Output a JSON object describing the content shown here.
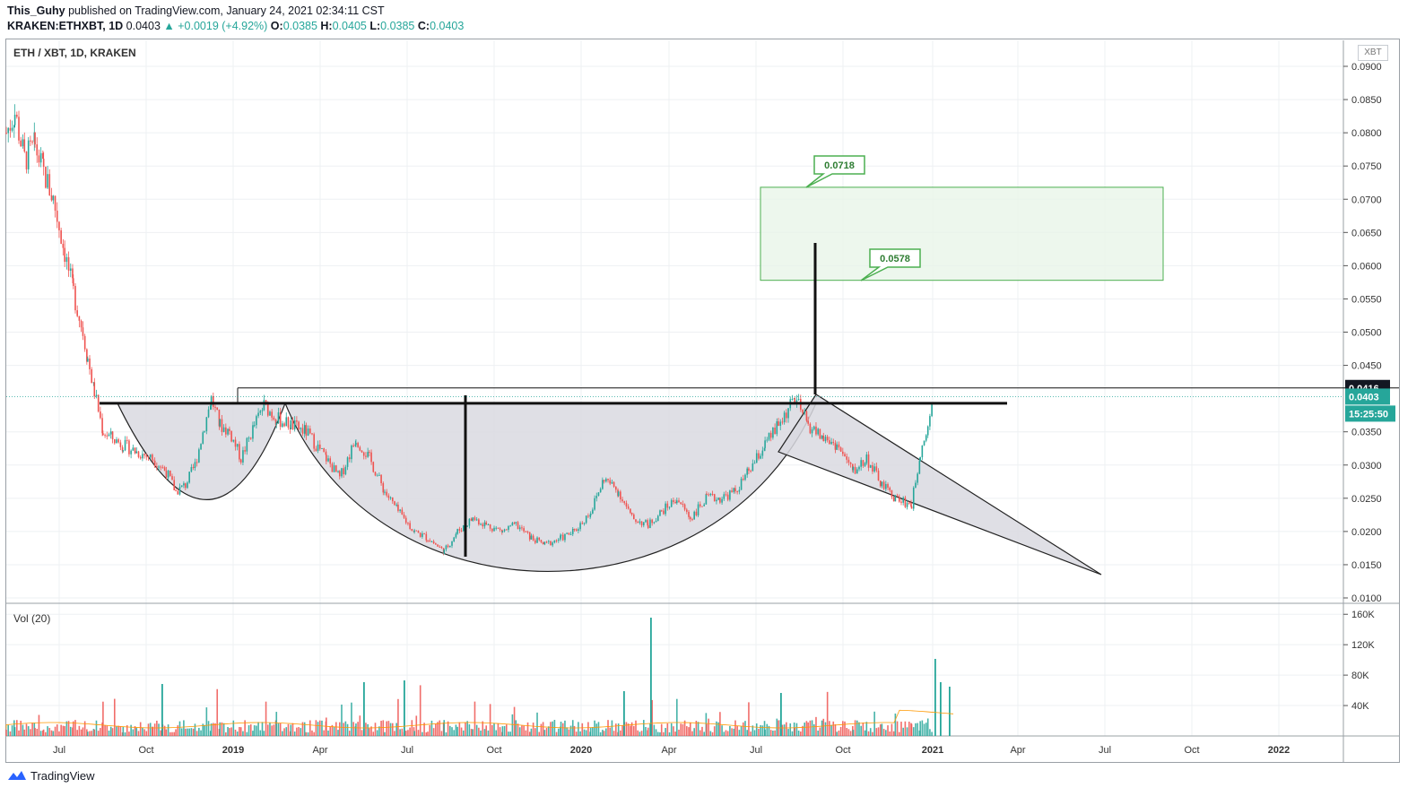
{
  "header": {
    "author": "This_Guhy",
    "published": "published on TradingView.com, January 24, 2021 02:34:11 CST",
    "symbol": "KRAKEN:ETHXBT, 1D",
    "last": "0.0403",
    "change": "▲ +0.0019 (+4.92%)",
    "o_label": "O:",
    "o": "0.0385",
    "h_label": "H:",
    "h": "0.0405",
    "l_label": "L:",
    "l": "0.0385",
    "c_label": "C:",
    "c": "0.0403"
  },
  "pane": {
    "title": "ETH / XBT, 1D, KRAKEN",
    "currency": "XBT",
    "volume_title": "Vol (20)"
  },
  "footer": {
    "brand": "TradingView"
  },
  "colors": {
    "up": "#26a69a",
    "down": "#ef5350",
    "target_fill": "#e8f5e9",
    "target_border": "#4caf50",
    "pattern_fill": "#d9d9e0"
  },
  "chart_data": {
    "type": "candlestick",
    "y_axis": {
      "scale": "linear",
      "range": [
        0.01,
        0.09
      ],
      "ticks": [
        "0.0900",
        "0.0850",
        "0.0800",
        "0.0750",
        "0.0700",
        "0.0650",
        "0.0600",
        "0.0550",
        "0.0500",
        "0.0450",
        "0.0350",
        "0.0300",
        "0.0250",
        "0.0200",
        "0.0150",
        "0.0100"
      ]
    },
    "x_axis": {
      "ticks": [
        "Jul",
        "Oct",
        "2019",
        "Apr",
        "Jul",
        "Oct",
        "2020",
        "Apr",
        "Jul",
        "Oct",
        "2021",
        "Apr",
        "Jul",
        "Oct",
        "2022"
      ]
    },
    "price_labels": [
      {
        "value": "0.0416",
        "style": "black"
      },
      {
        "value": "0.0403",
        "style": "green"
      },
      {
        "value": "15:25:50",
        "style": "green"
      }
    ],
    "annotations": {
      "target_low": "0.0578",
      "target_high": "0.0718",
      "neckline": 0.0393,
      "resistance": 0.0416
    },
    "price_series": [
      [
        "2018-06-01",
        0.08
      ],
      [
        "2018-06-10",
        0.083
      ],
      [
        "2018-06-20",
        0.076
      ],
      [
        "2018-07-01",
        0.078
      ],
      [
        "2018-07-10",
        0.074
      ],
      [
        "2018-07-20",
        0.07
      ],
      [
        "2018-08-01",
        0.062
      ],
      [
        "2018-08-10",
        0.056
      ],
      [
        "2018-08-20",
        0.05
      ],
      [
        "2018-08-25",
        0.046
      ],
      [
        "2018-09-01",
        0.041
      ],
      [
        "2018-09-10",
        0.035
      ],
      [
        "2018-09-20",
        0.034
      ],
      [
        "2018-10-01",
        0.033
      ],
      [
        "2018-10-15",
        0.032
      ],
      [
        "2018-11-01",
        0.031
      ],
      [
        "2018-11-15",
        0.029
      ],
      [
        "2018-11-25",
        0.026
      ],
      [
        "2018-12-05",
        0.027
      ],
      [
        "2018-12-15",
        0.03
      ],
      [
        "2018-12-25",
        0.036
      ],
      [
        "2019-01-01",
        0.04
      ],
      [
        "2019-01-10",
        0.036
      ],
      [
        "2019-01-20",
        0.035
      ],
      [
        "2019-02-01",
        0.031
      ],
      [
        "2019-02-15",
        0.036
      ],
      [
        "2019-02-25",
        0.039
      ],
      [
        "2019-03-10",
        0.037
      ],
      [
        "2019-03-25",
        0.036
      ],
      [
        "2019-04-10",
        0.035
      ],
      [
        "2019-05-01",
        0.031
      ],
      [
        "2019-05-15",
        0.028
      ],
      [
        "2019-06-01",
        0.034
      ],
      [
        "2019-06-15",
        0.031
      ],
      [
        "2019-07-01",
        0.026
      ],
      [
        "2019-07-15",
        0.023
      ],
      [
        "2019-08-01",
        0.02
      ],
      [
        "2019-08-15",
        0.019
      ],
      [
        "2019-09-01",
        0.017
      ],
      [
        "2019-09-15",
        0.02
      ],
      [
        "2019-10-01",
        0.022
      ],
      [
        "2019-10-15",
        0.021
      ],
      [
        "2019-11-01",
        0.02
      ],
      [
        "2019-11-15",
        0.021
      ],
      [
        "2019-12-01",
        0.019
      ],
      [
        "2019-12-15",
        0.018
      ],
      [
        "2020-01-01",
        0.019
      ],
      [
        "2020-01-15",
        0.02
      ],
      [
        "2020-02-01",
        0.023
      ],
      [
        "2020-02-15",
        0.028
      ],
      [
        "2020-03-01",
        0.026
      ],
      [
        "2020-03-15",
        0.022
      ],
      [
        "2020-04-01",
        0.021
      ],
      [
        "2020-04-15",
        0.023
      ],
      [
        "2020-05-01",
        0.025
      ],
      [
        "2020-05-15",
        0.022
      ],
      [
        "2020-06-01",
        0.025
      ],
      [
        "2020-06-15",
        0.025
      ],
      [
        "2020-07-01",
        0.026
      ],
      [
        "2020-07-15",
        0.029
      ],
      [
        "2020-08-01",
        0.033
      ],
      [
        "2020-08-15",
        0.036
      ],
      [
        "2020-09-01",
        0.04
      ],
      [
        "2020-09-15",
        0.036
      ],
      [
        "2020-10-01",
        0.034
      ],
      [
        "2020-10-15",
        0.033
      ],
      [
        "2020-11-01",
        0.029
      ],
      [
        "2020-11-15",
        0.031
      ],
      [
        "2020-12-01",
        0.027
      ],
      [
        "2020-12-15",
        0.025
      ],
      [
        "2021-01-01",
        0.024
      ],
      [
        "2021-01-10",
        0.032
      ],
      [
        "2021-01-18",
        0.036
      ],
      [
        "2021-01-24",
        0.0403
      ]
    ],
    "volume_axis": {
      "ticks": [
        "160K",
        "120K",
        "80K",
        "40K"
      ]
    }
  }
}
